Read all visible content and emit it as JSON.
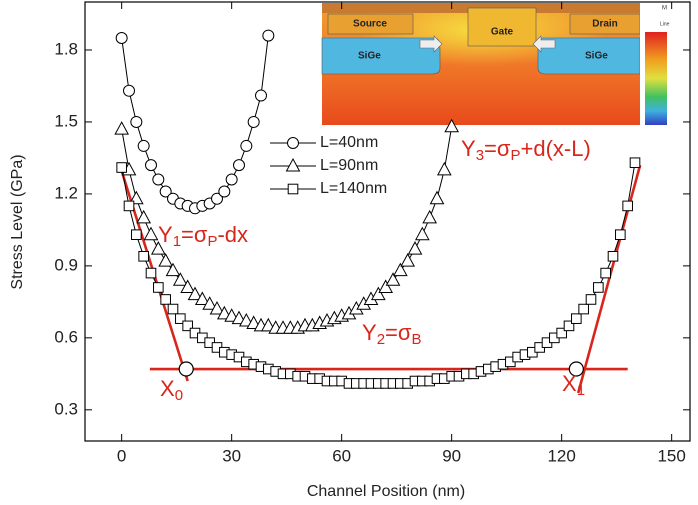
{
  "chart_data": {
    "type": "line",
    "xlabel": "Channel Position (nm)",
    "ylabel": "Stress Level (GPa)",
    "xlim": [
      -10,
      155
    ],
    "xticks": [
      0,
      30,
      60,
      90,
      120,
      150
    ],
    "ylim": [
      0.17,
      2.0
    ],
    "yticks": [
      0.3,
      0.6,
      0.9,
      1.2,
      1.5,
      1.8
    ],
    "series": [
      {
        "name": "L=40nm",
        "marker": "circle",
        "color": "#000000",
        "x": [
          0,
          2,
          4,
          6,
          8,
          10,
          12,
          14,
          16,
          18,
          20,
          22,
          24,
          26,
          28,
          30,
          32,
          34,
          36,
          38,
          40
        ],
        "values": [
          1.85,
          1.63,
          1.5,
          1.4,
          1.32,
          1.26,
          1.21,
          1.18,
          1.16,
          1.15,
          1.14,
          1.15,
          1.16,
          1.18,
          1.21,
          1.26,
          1.32,
          1.4,
          1.5,
          1.61,
          1.86
        ]
      },
      {
        "name": "L=90nm",
        "marker": "triangle",
        "color": "#000000",
        "x": [
          0,
          2,
          4,
          6,
          8,
          10,
          12,
          14,
          16,
          18,
          20,
          22,
          24,
          26,
          28,
          30,
          32,
          34,
          36,
          38,
          40,
          42,
          44,
          46,
          48,
          50,
          52,
          54,
          56,
          58,
          60,
          62,
          64,
          66,
          68,
          70,
          72,
          74,
          76,
          78,
          80,
          82,
          84,
          86,
          88,
          90
        ],
        "values": [
          1.47,
          1.3,
          1.18,
          1.1,
          1.03,
          0.97,
          0.92,
          0.88,
          0.84,
          0.81,
          0.78,
          0.76,
          0.74,
          0.72,
          0.7,
          0.69,
          0.68,
          0.67,
          0.66,
          0.65,
          0.65,
          0.64,
          0.64,
          0.64,
          0.64,
          0.65,
          0.65,
          0.66,
          0.67,
          0.68,
          0.69,
          0.7,
          0.72,
          0.74,
          0.76,
          0.78,
          0.81,
          0.84,
          0.88,
          0.92,
          0.97,
          1.03,
          1.1,
          1.18,
          1.3,
          1.48
        ]
      },
      {
        "name": "L=140nm",
        "marker": "square",
        "color": "#000000",
        "x": [
          0,
          2,
          4,
          6,
          8,
          10,
          12,
          14,
          16,
          18,
          20,
          22,
          24,
          26,
          28,
          30,
          32,
          34,
          36,
          38,
          40,
          42,
          44,
          46,
          48,
          50,
          52,
          54,
          56,
          58,
          60,
          62,
          64,
          66,
          68,
          70,
          72,
          74,
          76,
          78,
          80,
          82,
          84,
          86,
          88,
          90,
          92,
          94,
          96,
          98,
          100,
          102,
          104,
          106,
          108,
          110,
          112,
          114,
          116,
          118,
          120,
          122,
          124,
          126,
          128,
          130,
          132,
          134,
          136,
          138,
          140
        ],
        "values": [
          1.31,
          1.15,
          1.03,
          0.94,
          0.87,
          0.81,
          0.76,
          0.72,
          0.68,
          0.65,
          0.62,
          0.6,
          0.58,
          0.56,
          0.54,
          0.53,
          0.52,
          0.5,
          0.49,
          0.48,
          0.47,
          0.46,
          0.45,
          0.45,
          0.44,
          0.44,
          0.43,
          0.43,
          0.42,
          0.42,
          0.42,
          0.41,
          0.41,
          0.41,
          0.41,
          0.41,
          0.41,
          0.41,
          0.41,
          0.41,
          0.42,
          0.42,
          0.42,
          0.43,
          0.43,
          0.44,
          0.44,
          0.45,
          0.45,
          0.46,
          0.47,
          0.48,
          0.49,
          0.5,
          0.52,
          0.53,
          0.54,
          0.56,
          0.58,
          0.6,
          0.62,
          0.65,
          0.68,
          0.72,
          0.76,
          0.81,
          0.87,
          0.94,
          1.03,
          1.15,
          1.33
        ]
      }
    ],
    "fit_color": "#d9261c",
    "fit_lines": [
      {
        "x": [
          -0.5,
          18
        ],
        "y": [
          1.32,
          0.42
        ],
        "label": [
          {
            "text": "Y"
          },
          {
            "text": "1",
            "sub": true
          },
          {
            "text": "=σ"
          },
          {
            "text": "P",
            "sub": true
          },
          {
            "text": "-dx"
          }
        ]
      },
      {
        "x": [
          7.7,
          138
        ],
        "y": [
          0.47,
          0.47
        ],
        "label": [
          {
            "text": "Y"
          },
          {
            "text": "2",
            "sub": true
          },
          {
            "text": "=σ"
          },
          {
            "text": "B",
            "sub": true
          }
        ]
      },
      {
        "x": [
          124.5,
          141.4
        ],
        "y": [
          0.37,
          1.32
        ],
        "label": [
          {
            "text": "Y"
          },
          {
            "text": "3",
            "sub": true
          },
          {
            "text": "=σ"
          },
          {
            "text": "P",
            "sub": true
          },
          {
            "text": "+d(x-L)"
          }
        ]
      }
    ],
    "points": [
      {
        "x": 17.6,
        "y": 0.47,
        "label": [
          {
            "text": "X"
          },
          {
            "text": "0",
            "sub": true
          }
        ]
      },
      {
        "x": 124,
        "y": 0.47,
        "label": [
          {
            "text": "X"
          },
          {
            "text": "1",
            "sub": true
          }
        ]
      }
    ],
    "inset": {
      "source": "Source",
      "gate": "Gate",
      "drain": "Drain",
      "sige_left": "SiGe",
      "sige_right": "SiGe",
      "scale_top": "M",
      "scale_label": "Line"
    }
  }
}
